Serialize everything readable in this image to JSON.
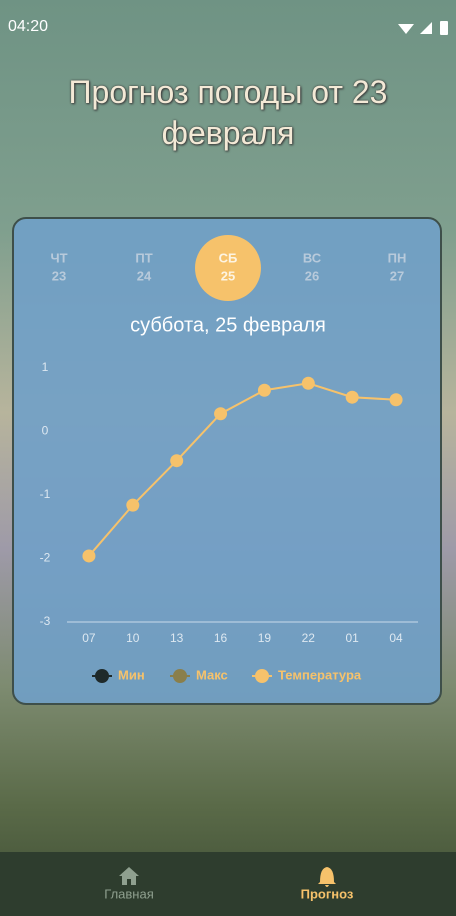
{
  "status_bar": {
    "time": "04:20"
  },
  "header": {
    "title": "Прогноз погоды от 23 февраля"
  },
  "day_tabs": [
    {
      "day": "ЧТ",
      "date": "23"
    },
    {
      "day": "ПТ",
      "date": "24"
    },
    {
      "day": "СБ",
      "date": "25",
      "selected": true
    },
    {
      "day": "ВС",
      "date": "26"
    },
    {
      "day": "ПН",
      "date": "27"
    }
  ],
  "chart_data": {
    "type": "line",
    "title": "суббота, 25 февраля",
    "categories": [
      "07",
      "10",
      "13",
      "16",
      "19",
      "22",
      "01",
      "04"
    ],
    "series": [
      {
        "name": "Мин",
        "color": "#1f2a2a",
        "values": [
          null,
          null,
          null,
          null,
          null,
          null,
          null,
          null
        ]
      },
      {
        "name": "Макс",
        "color": "#8a7f4a",
        "values": [
          null,
          null,
          null,
          null,
          null,
          null,
          null,
          null
        ]
      },
      {
        "name": "Температура",
        "color": "#f6c26b",
        "values": [
          -1.96,
          -1.16,
          -0.46,
          0.28,
          0.65,
          0.76,
          0.54,
          0.5
        ]
      }
    ],
    "ylim": [
      -3,
      1
    ],
    "yticks": [
      -3,
      -2,
      -1,
      0,
      1
    ],
    "legend": "bottom"
  },
  "nav": {
    "items": [
      {
        "label": "Главная"
      },
      {
        "label": "Прогноз",
        "selected": true
      }
    ]
  }
}
